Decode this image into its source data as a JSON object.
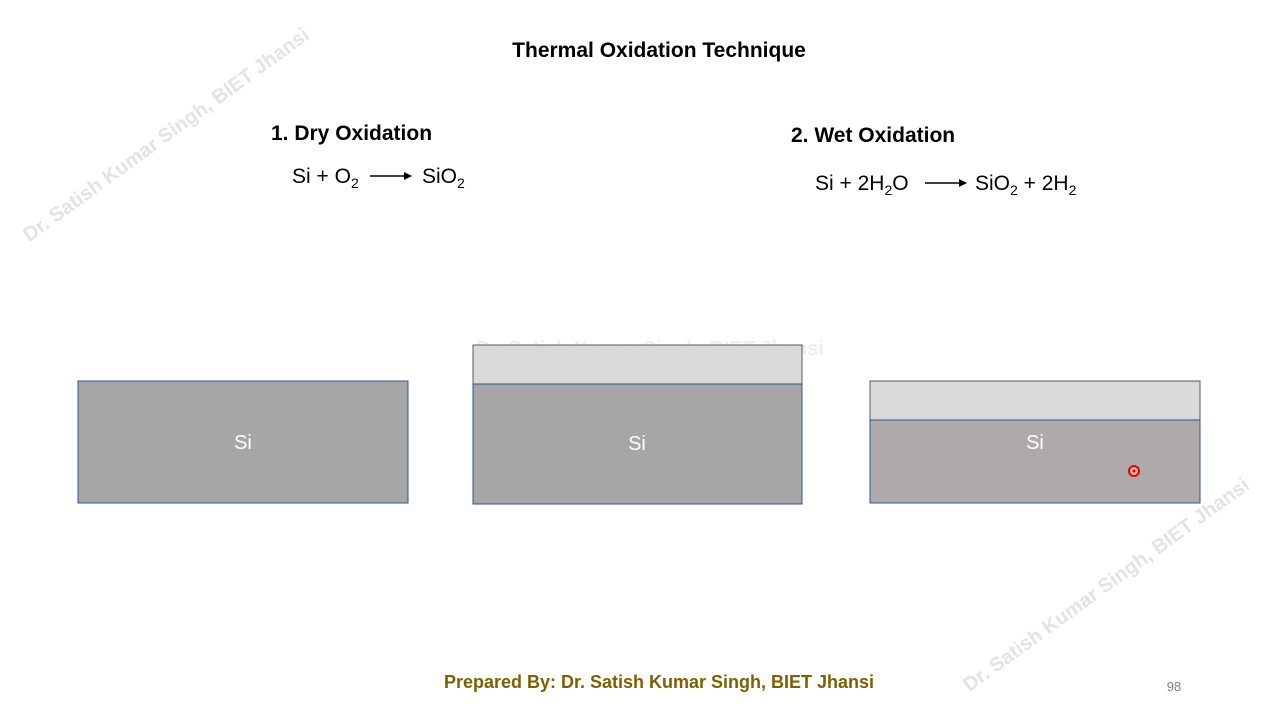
{
  "slide": {
    "title": "Thermal Oxidation Technique",
    "sections": [
      {
        "heading": "1. Dry Oxidation",
        "equation": {
          "lhs": [
            {
              "text": "Si + O"
            },
            {
              "sub": "2"
            }
          ],
          "rhs": [
            {
              "text": "SiO"
            },
            {
              "sub": "2"
            }
          ]
        }
      },
      {
        "heading": "2. Wet Oxidation",
        "equation": {
          "lhs": [
            {
              "text": "Si + 2H"
            },
            {
              "sub": "2"
            },
            {
              "text": "O"
            }
          ],
          "rhs": [
            {
              "text": "SiO"
            },
            {
              "sub": "2"
            },
            {
              "text": " + 2H"
            },
            {
              "sub": "2"
            }
          ]
        }
      }
    ],
    "diagrams": [
      {
        "label": "Si"
      },
      {
        "label": "Si"
      },
      {
        "label": "Si"
      }
    ],
    "watermark": "Dr. Satish Kumar Singh, BIET Jhansi",
    "footer": "Prepared By: Dr. Satish Kumar Singh, BIET Jhansi",
    "page_number": "98"
  }
}
